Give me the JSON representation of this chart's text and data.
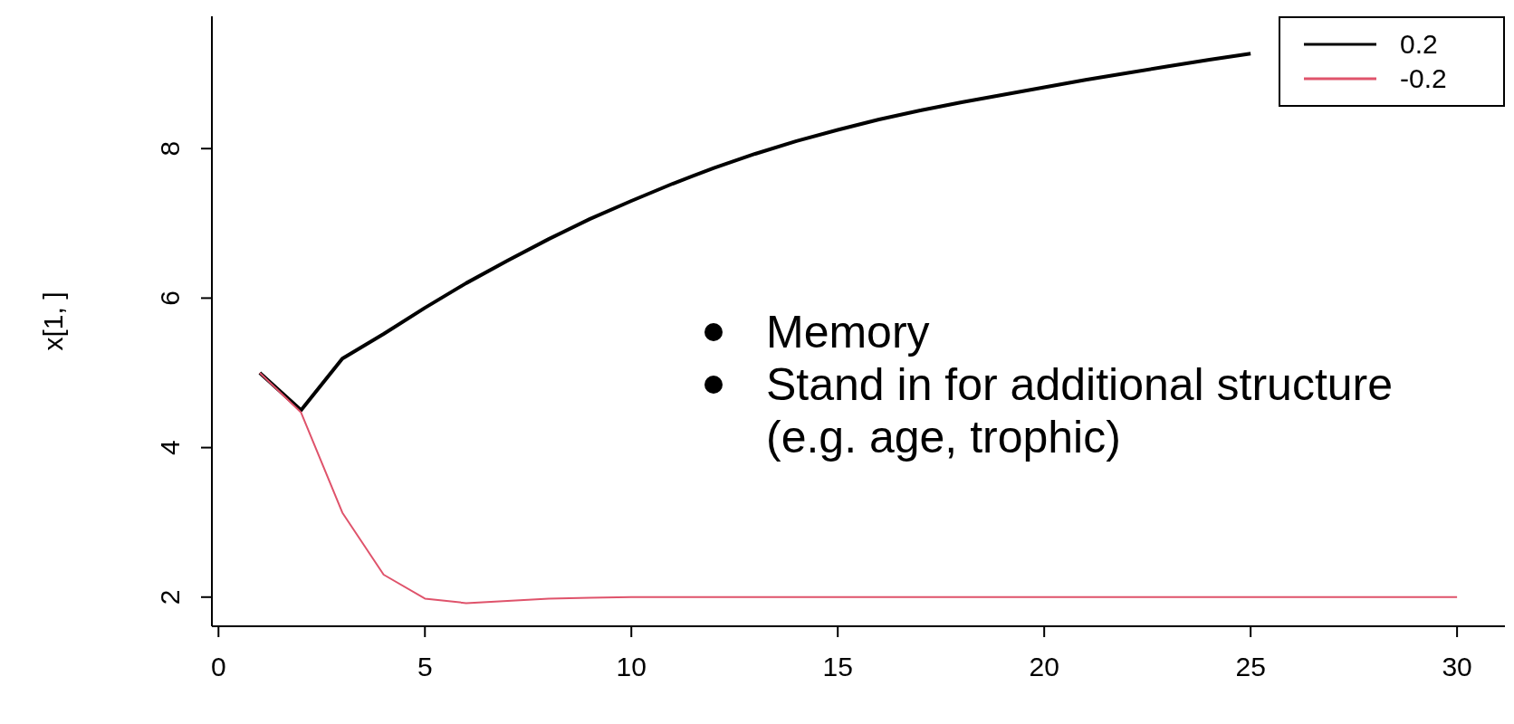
{
  "chart_data": {
    "type": "line",
    "ylabel": "x[1, ]",
    "x": [
      1,
      2,
      3,
      4,
      5,
      6,
      7,
      8,
      9,
      10,
      11,
      12,
      13,
      14,
      15,
      16,
      17,
      18,
      19,
      20,
      21,
      22,
      23,
      24,
      25,
      26,
      27,
      28,
      29,
      30
    ],
    "series": [
      {
        "name": "0.2",
        "color": "#000000",
        "values": [
          5.0,
          4.5,
          5.19,
          5.52,
          5.87,
          6.2,
          6.5,
          6.79,
          7.06,
          7.3,
          7.53,
          7.74,
          7.93,
          8.1,
          8.25,
          8.39,
          8.51,
          8.62,
          8.72,
          8.82,
          8.92,
          9.01,
          9.1,
          9.19,
          9.27,
          null,
          null,
          null,
          null,
          null
        ]
      },
      {
        "name": "-0.2",
        "color": "#df536b",
        "values": [
          5.0,
          4.47,
          3.13,
          2.3,
          1.98,
          1.92,
          1.95,
          1.98,
          1.99,
          2.0,
          2.0,
          2.0,
          2.0,
          2.0,
          2.0,
          2.0,
          2.0,
          2.0,
          2.0,
          2.0,
          2.0,
          2.0,
          2.0,
          2.0,
          2.0,
          2.0,
          2.0,
          2.0,
          2.0,
          2.0
        ]
      }
    ],
    "xlim": [
      -0.16,
      31.16
    ],
    "xticks": [
      0,
      5,
      10,
      15,
      20,
      25,
      30
    ],
    "ylim": [
      1.61,
      9.77
    ],
    "yticks": [
      2,
      4,
      6,
      8
    ],
    "legend": "top right",
    "marker": "none",
    "line_style": "solid",
    "grid": false,
    "annotations": [
      "Memory",
      "Stand in for additional structure (e.g. age, trophic)"
    ]
  }
}
